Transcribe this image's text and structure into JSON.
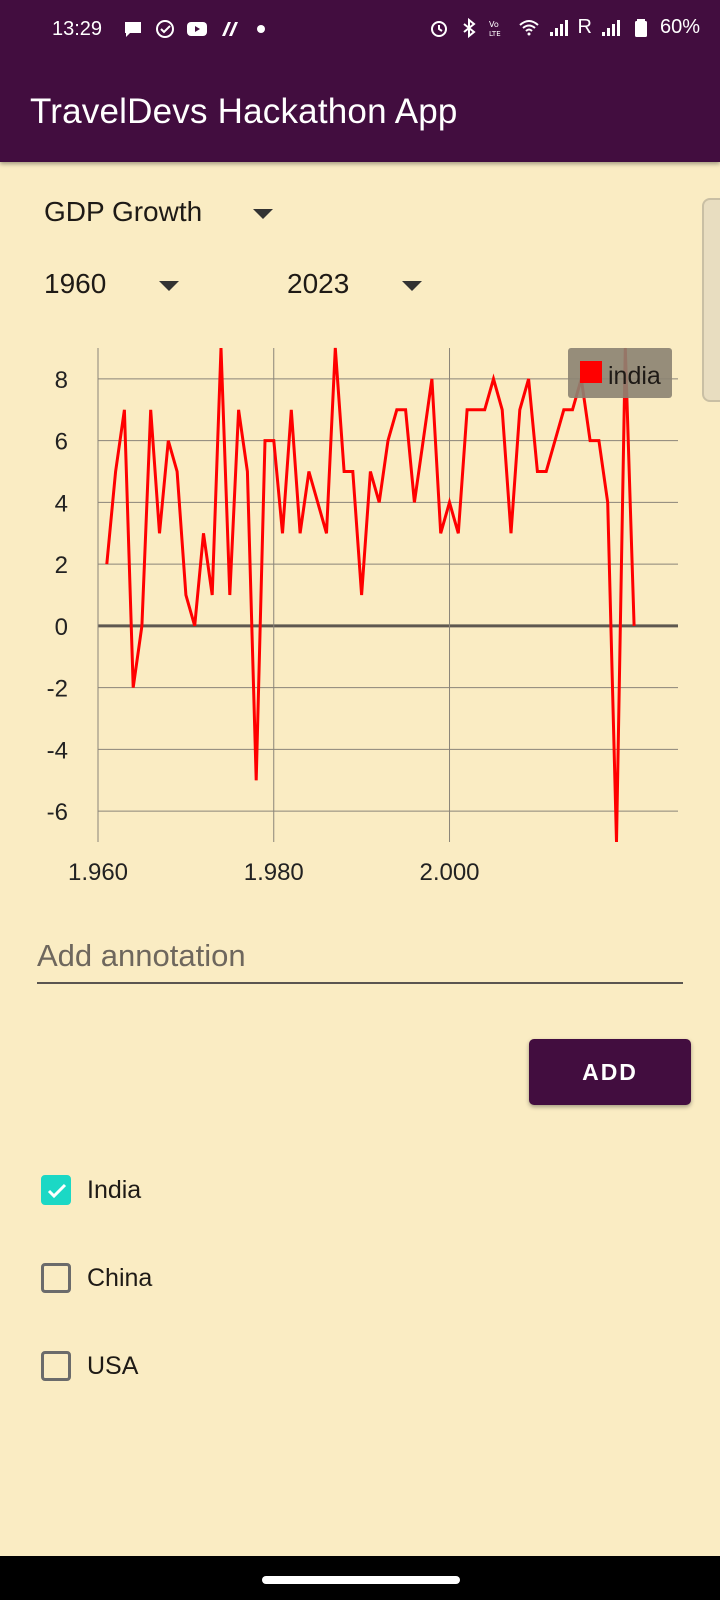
{
  "status_bar": {
    "time": "13:29",
    "network": "R",
    "battery": "60%",
    "icons": [
      "message-icon",
      "check-icon",
      "youtube-icon",
      "app-icon",
      "dot-icon",
      "alarm-icon",
      "bluetooth-icon",
      "volte-icon",
      "wifi-icon",
      "signal-icon",
      "signal-icon",
      "battery-icon"
    ]
  },
  "app": {
    "title": "TravelDevs Hackathon App"
  },
  "controls": {
    "metric": "GDP Growth",
    "start_year": "1960",
    "end_year": "2023"
  },
  "chart_data": {
    "type": "line",
    "legend": {
      "label": "india",
      "color": "#ff0000",
      "position": "top-right"
    },
    "x_ticks": [
      "1,960",
      "1,980",
      "2,000"
    ],
    "y_ticks": [
      "8",
      "6",
      "4",
      "2",
      "0",
      "-2",
      "-4",
      "-6"
    ],
    "xlim": [
      1960,
      2026
    ],
    "ylim": [
      -7,
      9
    ],
    "grid": true,
    "series": [
      {
        "name": "india",
        "color": "#ff0000",
        "x": [
          1961,
          1962,
          1963,
          1964,
          1965,
          1966,
          1967,
          1968,
          1969,
          1970,
          1971,
          1972,
          1973,
          1974,
          1975,
          1976,
          1977,
          1978,
          1979,
          1980,
          1981,
          1982,
          1983,
          1984,
          1985,
          1986,
          1987,
          1988,
          1989,
          1990,
          1991,
          1992,
          1993,
          1994,
          1995,
          1996,
          1997,
          1998,
          1999,
          2000,
          2001,
          2002,
          2003,
          2004,
          2005,
          2006,
          2007,
          2008,
          2009,
          2010,
          2011,
          2012,
          2013,
          2014,
          2015,
          2016,
          2017,
          2018,
          2019,
          2020,
          2021
        ],
        "values": [
          2,
          5,
          7,
          -2,
          0,
          7,
          3,
          6,
          5,
          1,
          0,
          3,
          1,
          9,
          1,
          7,
          5,
          -5,
          6,
          6,
          3,
          7,
          3,
          5,
          4,
          3,
          9,
          5,
          5,
          1,
          5,
          4,
          6,
          7,
          7,
          4,
          6,
          8,
          3,
          4,
          3,
          7,
          7,
          7,
          8,
          7,
          3,
          7,
          8,
          5,
          5,
          6,
          7,
          7,
          8,
          6,
          6,
          4,
          -7,
          9,
          0
        ]
      }
    ]
  },
  "annotation": {
    "placeholder": "Add annotation",
    "button": "ADD"
  },
  "countries": [
    {
      "label": "India",
      "checked": true
    },
    {
      "label": "China",
      "checked": false
    },
    {
      "label": "USA",
      "checked": false
    }
  ]
}
